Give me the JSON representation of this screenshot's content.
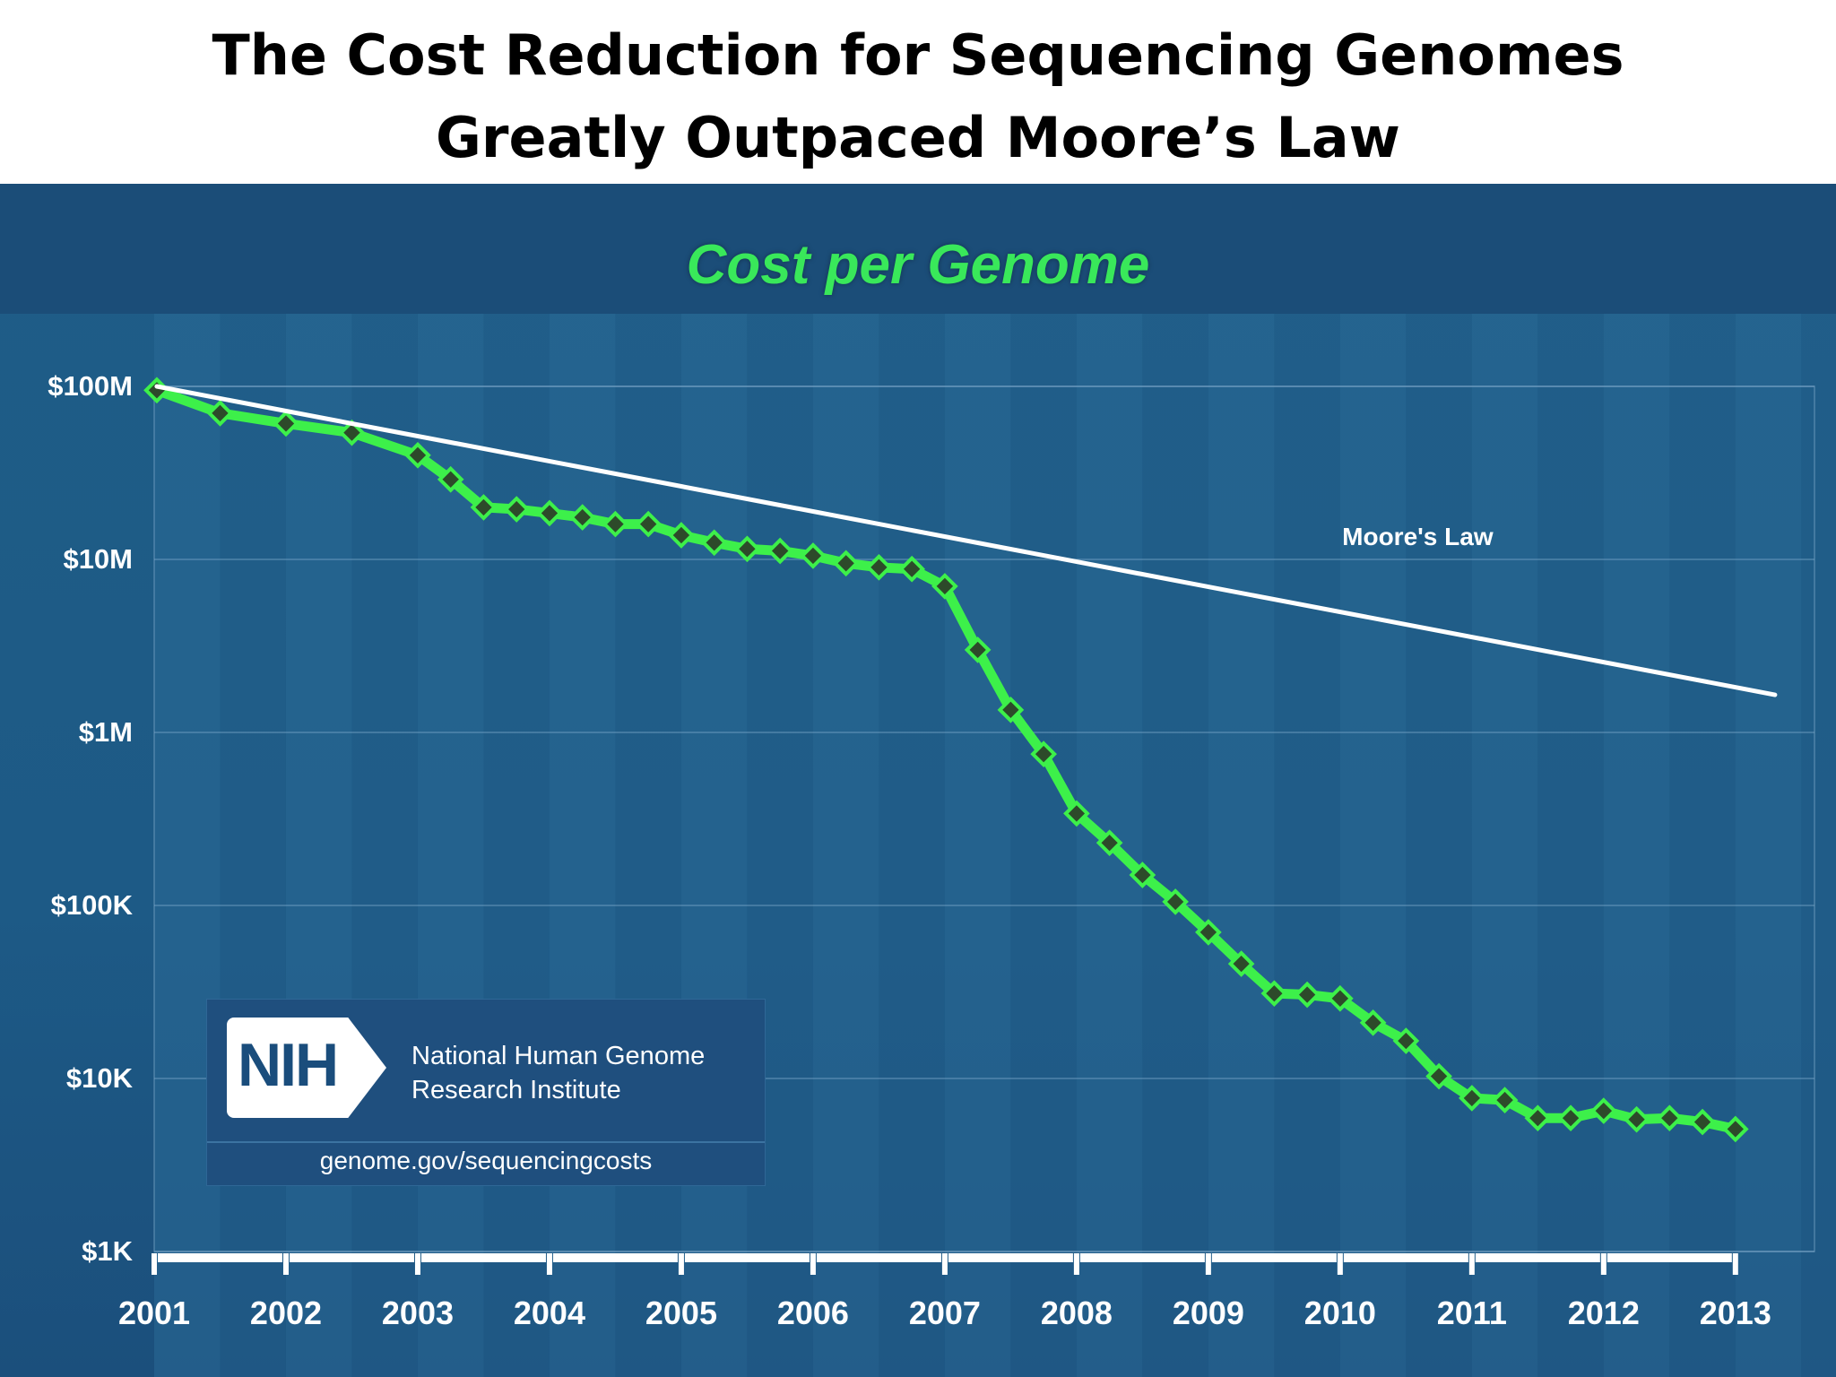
{
  "page": {
    "title_lines": [
      "The Cost Reduction for Sequencing Genomes",
      "Greatly Outpaced Moore’s Law"
    ]
  },
  "nih": {
    "logo_text": "NIH",
    "org_line1": "National Human Genome",
    "org_line2": "Research Institute",
    "url": "genome.gov/sequencingcosts"
  },
  "colors": {
    "panel_background": "#1e5a85",
    "genome_line": "#3df04a",
    "marker_fill": "#2d4a2a",
    "moore_line": "#ffffff",
    "subtitle": "#39e85a"
  },
  "chart_data": {
    "type": "line",
    "title": "Cost per Genome",
    "xlabel": "",
    "ylabel": "",
    "y_scale": "log",
    "ylim": [
      1000,
      100000000
    ],
    "xlim": [
      2001.0,
      2013.6
    ],
    "y_ticks": [
      {
        "value": 100000000,
        "label": "$100M"
      },
      {
        "value": 10000000,
        "label": "$10M"
      },
      {
        "value": 1000000,
        "label": "$1M"
      },
      {
        "value": 100000,
        "label": "$100K"
      },
      {
        "value": 10000,
        "label": "$10K"
      },
      {
        "value": 1000,
        "label": "$1K"
      }
    ],
    "x_ticks": [
      {
        "value": 2001,
        "label": "2001"
      },
      {
        "value": 2002,
        "label": "2002"
      },
      {
        "value": 2003,
        "label": "2003"
      },
      {
        "value": 2004,
        "label": "2004"
      },
      {
        "value": 2005,
        "label": "2005"
      },
      {
        "value": 2006,
        "label": "2006"
      },
      {
        "value": 2007,
        "label": "2007"
      },
      {
        "value": 2008,
        "label": "2008"
      },
      {
        "value": 2009,
        "label": "2009"
      },
      {
        "value": 2010,
        "label": "2010"
      },
      {
        "value": 2011,
        "label": "2011"
      },
      {
        "value": 2012,
        "label": "2012"
      },
      {
        "value": 2013,
        "label": "2013"
      }
    ],
    "grid": true,
    "series": [
      {
        "name": "",
        "points": [
          [
            2001.02,
            95000000
          ],
          [
            2001.5,
            70000000
          ],
          [
            2002.0,
            61000000
          ],
          [
            2002.5,
            54000000
          ],
          [
            2003.0,
            40000000
          ],
          [
            2003.25,
            29000000
          ],
          [
            2003.5,
            20000000
          ],
          [
            2003.75,
            19500000
          ],
          [
            2004.0,
            18500000
          ],
          [
            2004.25,
            17500000
          ],
          [
            2004.5,
            16000000
          ],
          [
            2004.75,
            16000000
          ],
          [
            2005.0,
            13800000
          ],
          [
            2005.25,
            12500000
          ],
          [
            2005.5,
            11500000
          ],
          [
            2005.75,
            11200000
          ],
          [
            2006.0,
            10500000
          ],
          [
            2006.25,
            9500000
          ],
          [
            2006.5,
            9000000
          ],
          [
            2006.75,
            8800000
          ],
          [
            2007.0,
            7000000
          ],
          [
            2007.25,
            3000000
          ],
          [
            2007.5,
            1350000
          ],
          [
            2007.75,
            750000
          ],
          [
            2008.0,
            340000
          ],
          [
            2008.25,
            230000
          ],
          [
            2008.5,
            150000
          ],
          [
            2008.75,
            105000
          ],
          [
            2009.0,
            70000
          ],
          [
            2009.25,
            46000
          ],
          [
            2009.5,
            31000
          ],
          [
            2009.75,
            30500
          ],
          [
            2010.0,
            29000
          ],
          [
            2010.25,
            21000
          ],
          [
            2010.5,
            16500
          ],
          [
            2010.75,
            10300
          ],
          [
            2011.0,
            7700
          ],
          [
            2011.25,
            7500
          ],
          [
            2011.5,
            5900
          ],
          [
            2011.75,
            5900
          ],
          [
            2012.0,
            6500
          ],
          [
            2012.25,
            5800
          ],
          [
            2012.5,
            5900
          ],
          [
            2012.75,
            5600
          ],
          [
            2013.0,
            5100
          ]
        ]
      },
      {
        "name": "Moore's Law",
        "line_only": true,
        "points": [
          [
            2001.02,
            100000000
          ],
          [
            2013.3,
            1650000
          ]
        ]
      }
    ]
  }
}
